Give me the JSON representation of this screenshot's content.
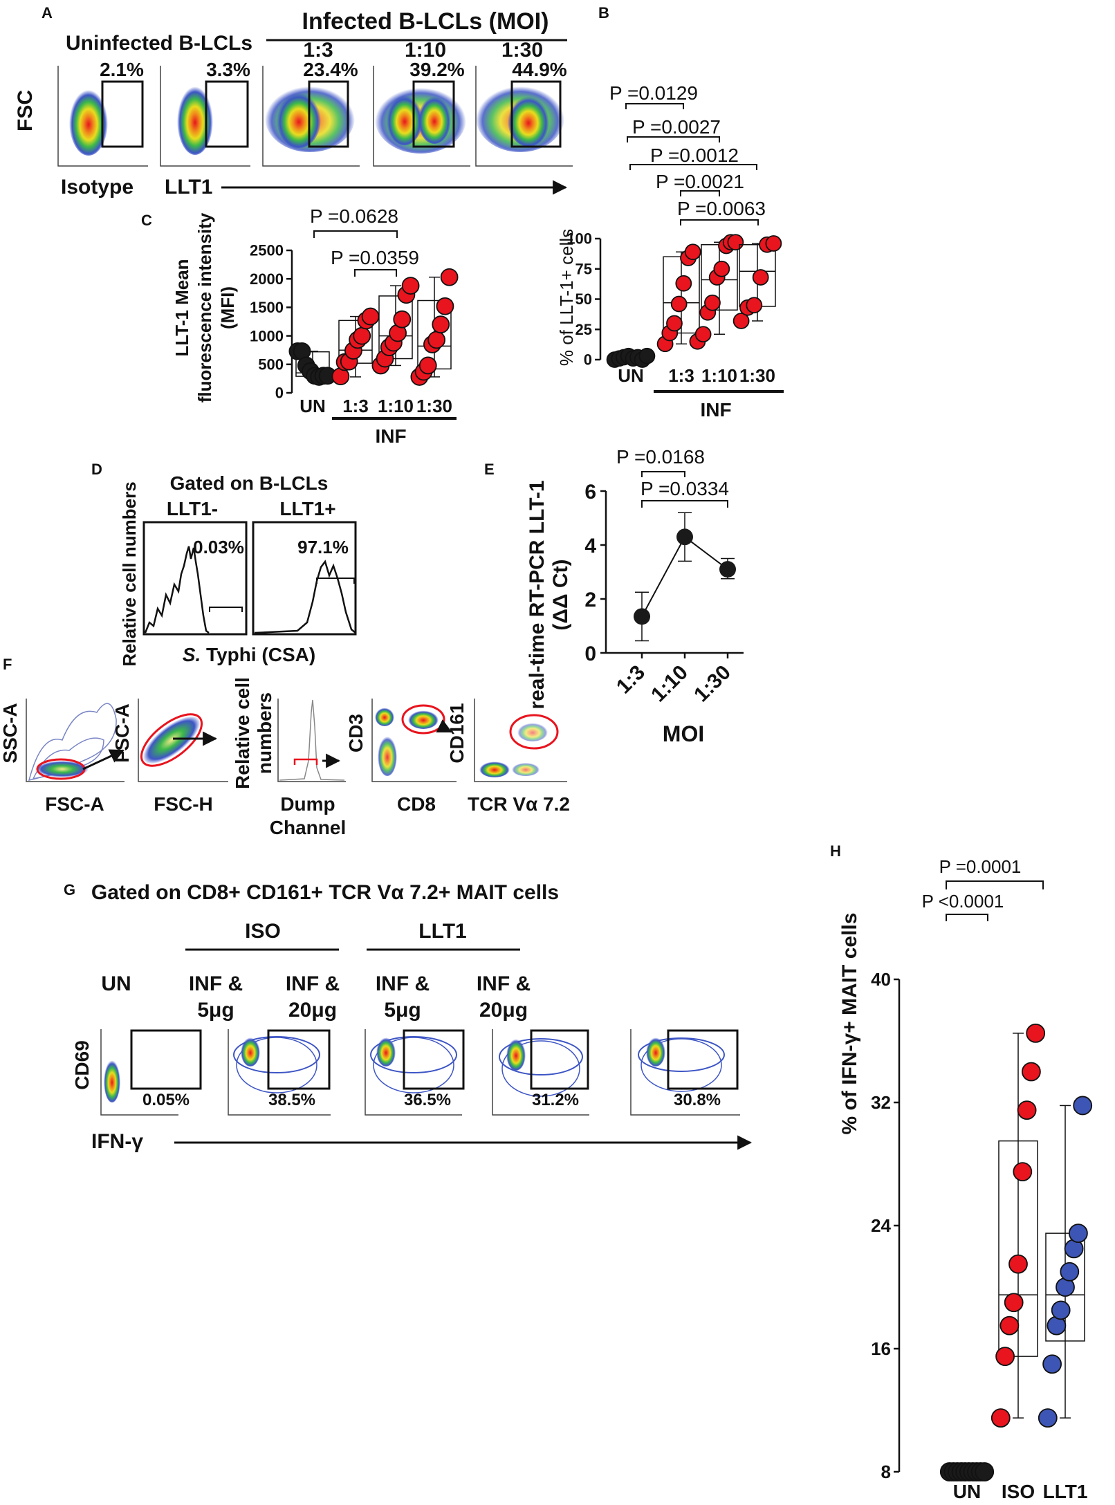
{
  "colors": {
    "infected": "#e8141e",
    "uninfected": "#1a1a1a",
    "llt1_dot": "#3d55b5",
    "gate_red": "#e8141e"
  },
  "panels": {
    "a": {
      "letter": "A",
      "header_infected": "Infected B-LCLs (MOI)",
      "header_uninfected": "Uninfected B-LCLs",
      "moi_labels": [
        "1:3",
        "1:10",
        "1:30"
      ],
      "gate_percents": [
        "2.1%",
        "3.3%",
        "23.4%",
        "39.2%",
        "44.9%"
      ],
      "y_axis": "FSC",
      "x_isotype": "Isotype",
      "x_llt1": "LLT1"
    },
    "b": {
      "letter": "B",
      "ylabel": "% of LLT-1+ cells",
      "group_label": "INF",
      "pvalues": [
        "P =0.0129",
        "P =0.0027",
        "P =0.0012",
        "P =0.0021",
        "P =0.0063"
      ]
    },
    "c": {
      "letter": "C",
      "ylabel_line1": "LLT-1 Mean",
      "ylabel_line2": "fluorescence intensity",
      "ylabel_line3": "(MFI)",
      "group_label": "INF",
      "pvalues": [
        "P =0.0628",
        "P =0.0359"
      ]
    },
    "d": {
      "letter": "D",
      "title": "Gated on B-LCLs",
      "left_label": "LLT1-",
      "right_label": "LLT1+",
      "left_percent": "0.03%",
      "right_percent": "97.1%",
      "ylabel": "Relative cell numbers",
      "xlabel_italic": "S.",
      "xlabel_rest": " Typhi (CSA)"
    },
    "e": {
      "letter": "E",
      "ylabel_line1": "real-time RT-PCR LLT-1",
      "ylabel_line2": "(ΔΔ Ct)",
      "xlabel": "MOI",
      "pvalues": [
        "P =0.0168",
        "P =0.0334"
      ]
    },
    "f": {
      "letter": "F",
      "plot1_y": "SSC-A",
      "plot1_x": "FSC-A",
      "plot2_y": "FSC-A",
      "plot2_x": "FSC-H",
      "plot3_y_line1": "Relative cell",
      "plot3_y_line2": "numbers",
      "plot3_x_line1": "Dump",
      "plot3_x_line2": "Channel",
      "plot4_y": "CD3",
      "plot4_x": "CD8",
      "plot5_y": "CD161",
      "plot5_x": "TCR Vα 7.2"
    },
    "g": {
      "letter": "G",
      "title": "Gated on CD8+ CD161+ TCR Vα 7.2+ MAIT cells",
      "iso_label": "ISO",
      "llt1_label": "LLT1",
      "un_label": "UN",
      "cond_line1": "INF &",
      "cond_5": "5μg",
      "cond_20": "20μg",
      "percents": [
        "0.05%",
        "38.5%",
        "36.5%",
        "31.2%",
        "30.8%"
      ],
      "y_axis": "CD69",
      "x_axis": "IFN-γ"
    },
    "h": {
      "letter": "H",
      "ylabel": "% of IFN-γ+ MAIT cells",
      "pvalues": [
        "P <0.0001",
        "P =0.0001"
      ]
    }
  },
  "chart_data": [
    {
      "id": "b",
      "type": "box",
      "title": "",
      "ylabel": "% of LLT-1+ cells",
      "categories": [
        "UN",
        "1:3",
        "1:10",
        "1:30"
      ],
      "ylim": [
        0,
        100
      ],
      "yticks": [
        0,
        25,
        50,
        75,
        100
      ],
      "boxes": [
        {
          "min": 0,
          "q1": 0,
          "median": 1,
          "q3": 3,
          "max": 4
        },
        {
          "min": 13,
          "q1": 22,
          "median": 47,
          "q3": 85,
          "max": 89
        },
        {
          "min": 21,
          "q1": 41,
          "median": 66,
          "q3": 95,
          "max": 97
        },
        {
          "min": 32,
          "q1": 44,
          "median": 73,
          "q3": 95,
          "max": 96
        }
      ],
      "points": [
        [
          0,
          1,
          2,
          3,
          1,
          2,
          0,
          3
        ],
        [
          13,
          22,
          30,
          46,
          63,
          84,
          89,
          15
        ],
        [
          21,
          39,
          47,
          68,
          75,
          94,
          97,
          97
        ],
        [
          32,
          43,
          45,
          68,
          95,
          96
        ]
      ]
    },
    {
      "id": "c",
      "type": "box",
      "title": "",
      "ylabel": "LLT-1 Mean fluorescence intensity (MFI)",
      "categories": [
        "UN",
        "1:3",
        "1:10",
        "1:30"
      ],
      "ylim": [
        0,
        2500
      ],
      "yticks": [
        0,
        500,
        1000,
        1500,
        2000,
        2500
      ],
      "boxes": [
        {
          "min": 280,
          "q1": 290,
          "median": 350,
          "q3": 720,
          "max": 730
        },
        {
          "min": 280,
          "q1": 520,
          "median": 750,
          "q3": 1270,
          "max": 1340
        },
        {
          "min": 480,
          "q1": 600,
          "median": 1000,
          "q3": 1700,
          "max": 1880
        },
        {
          "min": 280,
          "q1": 420,
          "median": 820,
          "q3": 1620,
          "max": 2030
        }
      ],
      "points": [
        [
          730,
          730,
          480,
          380,
          300,
          280,
          300,
          300
        ],
        [
          290,
          540,
          550,
          740,
          930,
          1000,
          1270,
          1340
        ],
        [
          480,
          600,
          800,
          880,
          1050,
          1290,
          1720,
          1880
        ],
        [
          280,
          370,
          480,
          850,
          930,
          1200,
          1520,
          2030
        ]
      ]
    },
    {
      "id": "e",
      "type": "line",
      "title": "",
      "xlabel": "MOI",
      "ylabel": "real-time RT-PCR LLT-1 (ΔΔ Ct)",
      "categories": [
        "1:3",
        "1:10",
        "1:30"
      ],
      "values": [
        1.35,
        4.3,
        3.1
      ],
      "errors_low": [
        0.45,
        3.4,
        2.75
      ],
      "errors_high": [
        2.25,
        5.2,
        3.5
      ],
      "ylim": [
        0,
        6
      ],
      "yticks": [
        0,
        2,
        4,
        6
      ]
    },
    {
      "id": "h",
      "type": "box",
      "title": "",
      "ylabel": "% of IFN-γ+ MAIT cells",
      "categories": [
        "UN",
        "ISO",
        "LLT1"
      ],
      "ylim": [
        8,
        40
      ],
      "yticks": [
        8,
        16,
        24,
        32,
        40
      ],
      "boxes": [
        {
          "min": 8,
          "q1": 8,
          "median": 8,
          "q3": 8,
          "max": 8
        },
        {
          "min": 11.5,
          "q1": 15.5,
          "median": 19.5,
          "q3": 29.5,
          "max": 36.5
        },
        {
          "min": 11.5,
          "q1": 16.5,
          "median": 19.5,
          "q3": 23.5,
          "max": 31.8
        }
      ],
      "points": [
        [
          8,
          8,
          8,
          8,
          8,
          8,
          8,
          8,
          8,
          8
        ],
        [
          11.5,
          15.5,
          17.5,
          19,
          21.5,
          27.5,
          31.5,
          34,
          36.5
        ],
        [
          11.5,
          15,
          17.5,
          18.5,
          20,
          21,
          22.5,
          23.5,
          31.8
        ]
      ]
    }
  ]
}
